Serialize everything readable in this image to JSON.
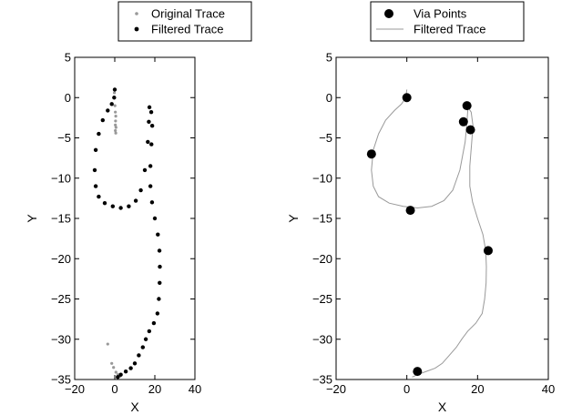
{
  "chart_data": [
    {
      "type": "scatter",
      "xlabel": "X",
      "ylabel": "Y",
      "xlim": [
        -20,
        40
      ],
      "ylim": [
        -35,
        5
      ],
      "xticks": [
        -20,
        0,
        20,
        40
      ],
      "yticks": [
        5,
        0,
        -5,
        -10,
        -15,
        -20,
        -25,
        -30,
        -35
      ],
      "xtick_labels": [
        "−20",
        "0",
        "20",
        "40"
      ],
      "ytick_labels": [
        "5",
        "0",
        "−5",
        "−10",
        "−15",
        "−20",
        "−25",
        "−30",
        "−35"
      ],
      "legend_position": "top",
      "series": [
        {
          "name": "Original Trace",
          "color": "#999999",
          "points": [
            [
              -0.2,
              0.6
            ],
            [
              0.1,
              -1.0
            ],
            [
              0.3,
              -1.8
            ],
            [
              0.5,
              -2.3
            ],
            [
              0.4,
              -2.9
            ],
            [
              0.3,
              -3.4
            ],
            [
              0.6,
              -3.7
            ],
            [
              0.3,
              -4.1
            ],
            [
              0.5,
              -4.4
            ],
            [
              -3.5,
              -30.6
            ],
            [
              -1.5,
              -33.0
            ],
            [
              -0.6,
              -33.5
            ],
            [
              0.6,
              -34.1
            ],
            [
              1.6,
              -34.4
            ],
            [
              2.6,
              -34.6
            ]
          ]
        },
        {
          "name": "Filtered Trace",
          "color": "#000000",
          "points": [
            [
              0,
              1.0
            ],
            [
              -0.3,
              0
            ],
            [
              -1.5,
              -0.8
            ],
            [
              -3.5,
              -1.6
            ],
            [
              -6,
              -2.8
            ],
            [
              -8,
              -4.5
            ],
            [
              -9.5,
              -6.5
            ],
            [
              -10,
              -9
            ],
            [
              -9.5,
              -11
            ],
            [
              -8,
              -12.3
            ],
            [
              -5,
              -13.1
            ],
            [
              -1,
              -13.5
            ],
            [
              3,
              -13.7
            ],
            [
              7,
              -13.5
            ],
            [
              10.5,
              -12.8
            ],
            [
              13,
              -11.5
            ],
            [
              15,
              -9
            ],
            [
              16.5,
              -5.5
            ],
            [
              17,
              -3
            ],
            [
              17.3,
              -1.2
            ],
            [
              18.2,
              -1.8
            ],
            [
              18.7,
              -3.5
            ],
            [
              18.3,
              -5.8
            ],
            [
              17.8,
              -8.5
            ],
            [
              17.8,
              -11
            ],
            [
              18.6,
              -13
            ],
            [
              20,
              -15
            ],
            [
              21.5,
              -17
            ],
            [
              22.3,
              -19
            ],
            [
              22.5,
              -21
            ],
            [
              22.4,
              -23
            ],
            [
              22,
              -25
            ],
            [
              21.3,
              -26.8
            ],
            [
              19.5,
              -28
            ],
            [
              17.2,
              -29
            ],
            [
              15.5,
              -30
            ],
            [
              14,
              -31
            ],
            [
              12,
              -32
            ],
            [
              10,
              -33
            ],
            [
              8,
              -33.6
            ],
            [
              5.5,
              -34
            ],
            [
              3,
              -34.4
            ],
            [
              1.5,
              -34.7
            ]
          ]
        }
      ]
    },
    {
      "type": "line",
      "xlabel": "X",
      "ylabel": "Y",
      "xlim": [
        -20,
        40
      ],
      "ylim": [
        -35,
        5
      ],
      "xticks": [
        -20,
        0,
        20,
        40
      ],
      "yticks": [
        5,
        0,
        -5,
        -10,
        -15,
        -20,
        -25,
        -30,
        -35
      ],
      "xtick_labels": [
        "−20",
        "0",
        "20",
        "40"
      ],
      "ytick_labels": [
        "5",
        "0",
        "−5",
        "−10",
        "−15",
        "−20",
        "−25",
        "−30",
        "−35"
      ],
      "legend_position": "top",
      "series": [
        {
          "name": "Via Points",
          "color": "#000000",
          "points": [
            [
              0,
              0
            ],
            [
              -10,
              -7
            ],
            [
              1,
              -14
            ],
            [
              17,
              -1
            ],
            [
              16,
              -3
            ],
            [
              18,
              -4
            ],
            [
              23,
              -19
            ],
            [
              3,
              -34
            ]
          ]
        },
        {
          "name": "Filtered Trace",
          "color": "#999999",
          "points": [
            [
              0,
              1.0
            ],
            [
              -0.3,
              0
            ],
            [
              -1.5,
              -0.8
            ],
            [
              -3.5,
              -1.6
            ],
            [
              -6,
              -2.8
            ],
            [
              -8,
              -4.5
            ],
            [
              -9.5,
              -6.5
            ],
            [
              -10,
              -9
            ],
            [
              -9.5,
              -11
            ],
            [
              -8,
              -12.3
            ],
            [
              -5,
              -13.1
            ],
            [
              -1,
              -13.5
            ],
            [
              3,
              -13.7
            ],
            [
              7,
              -13.5
            ],
            [
              10.5,
              -12.8
            ],
            [
              13,
              -11.5
            ],
            [
              15,
              -9
            ],
            [
              16.5,
              -5.5
            ],
            [
              17,
              -3
            ],
            [
              17.3,
              -1.2
            ],
            [
              18.2,
              -1.8
            ],
            [
              18.7,
              -3.5
            ],
            [
              18.3,
              -5.8
            ],
            [
              17.8,
              -8.5
            ],
            [
              17.8,
              -11
            ],
            [
              18.6,
              -13
            ],
            [
              20,
              -15
            ],
            [
              21.5,
              -17
            ],
            [
              22.3,
              -19
            ],
            [
              22.5,
              -21
            ],
            [
              22.4,
              -23
            ],
            [
              22,
              -25
            ],
            [
              21.3,
              -26.8
            ],
            [
              19.5,
              -28
            ],
            [
              17.2,
              -29
            ],
            [
              15.5,
              -30
            ],
            [
              14,
              -31
            ],
            [
              12,
              -32
            ],
            [
              10,
              -33
            ],
            [
              8,
              -33.6
            ],
            [
              5.5,
              -34
            ],
            [
              3,
              -34.4
            ],
            [
              1.5,
              -34.7
            ]
          ]
        }
      ]
    }
  ]
}
